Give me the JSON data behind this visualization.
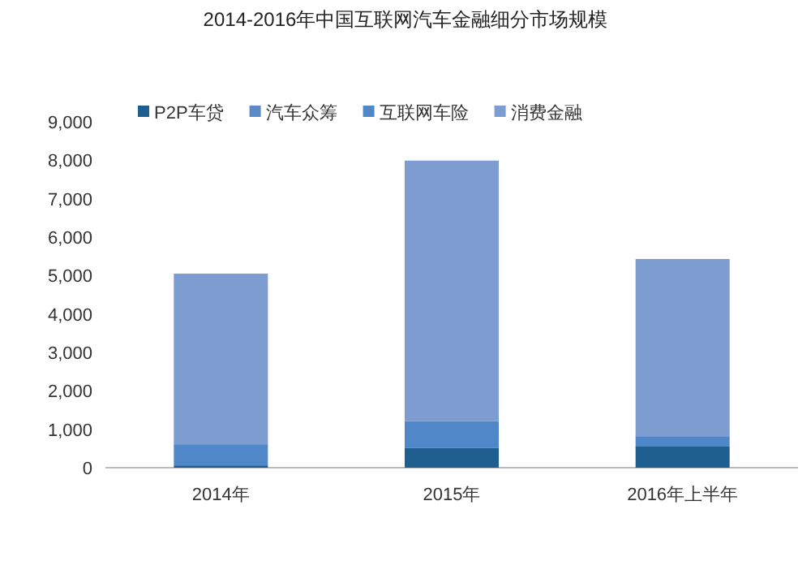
{
  "chart_data": {
    "type": "bar",
    "stacked": true,
    "title": "2014-2016年中国互联网汽车金融细分市场规模",
    "categories": [
      "2014年",
      "2015年",
      "2016年上半年"
    ],
    "series": [
      {
        "name": "P2P车贷",
        "color": "#1f5f8f",
        "values": [
          60,
          510,
          550
        ]
      },
      {
        "name": "汽车众筹",
        "color": "#5b8ac6",
        "values": [
          null,
          null,
          null
        ]
      },
      {
        "name": "互联网车险",
        "color": "#5087c8",
        "values": [
          550,
          700,
          270
        ]
      },
      {
        "name": "消费金融",
        "color": "#7d9ccf",
        "values": [
          4440,
          6780,
          4610
        ]
      }
    ],
    "ylim": [
      0,
      9000
    ],
    "yticks": [
      0,
      {
        "value": 1000,
        "label": "1,000"
      },
      {
        "value": 2000,
        "label": "2,000"
      },
      {
        "value": 3000,
        "label": "3,000"
      },
      {
        "value": 4000,
        "label": "4,000"
      },
      {
        "value": 5000,
        "label": "5,000"
      },
      {
        "value": 6000,
        "label": "6,000"
      },
      {
        "value": 7000,
        "label": "7,000"
      },
      {
        "value": 8000,
        "label": "8,000"
      },
      {
        "value": 9000,
        "label": "9,000"
      }
    ],
    "legend": "top left",
    "grid": false
  }
}
